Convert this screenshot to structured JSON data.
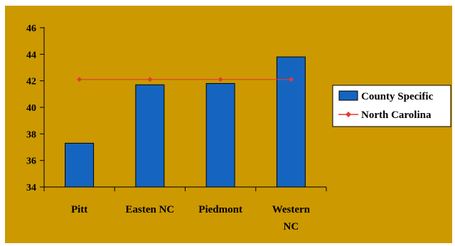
{
  "chart_data": {
    "type": "bar",
    "categories": [
      [
        "Pitt"
      ],
      [
        "Easten NC"
      ],
      [
        "Piedmont"
      ],
      [
        "Western",
        "NC"
      ]
    ],
    "series": [
      {
        "name": "County Specific",
        "kind": "bar",
        "color": "#1565C0",
        "values": [
          37.3,
          41.7,
          41.8,
          43.8
        ]
      },
      {
        "name": "North Carolina",
        "kind": "line",
        "color": "#E53935",
        "values": [
          42.1,
          42.1,
          42.1,
          42.1
        ]
      }
    ],
    "ylim": [
      34,
      46
    ],
    "yticks": [
      34,
      36,
      38,
      40,
      42,
      44,
      46
    ],
    "grid": false,
    "legend_position": "right",
    "background": "#CC9900"
  }
}
